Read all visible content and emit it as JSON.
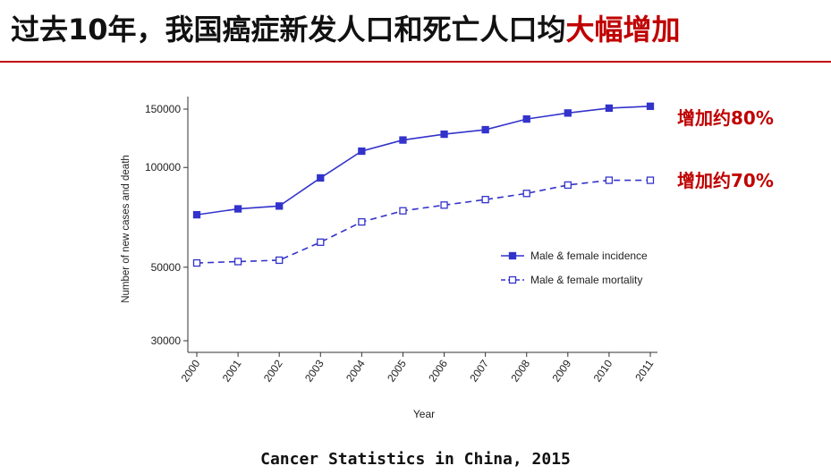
{
  "slide": {
    "title_main": "过去10年，我国癌症新发人口和死亡人口均",
    "title_highlight": "大幅增加",
    "source": "Cancer Statistics in China, 2015"
  },
  "annotations": {
    "incidence": "增加约80%",
    "mortality": "增加约70%"
  },
  "colors": {
    "series": "#3333cc",
    "highlight": "#c00000",
    "rule": "#c00000"
  },
  "chart_data": {
    "type": "line",
    "xlabel": "Year",
    "ylabel": "Number of new cases and death",
    "x": [
      "2000",
      "2001",
      "2002",
      "2003",
      "2004",
      "2005",
      "2006",
      "2007",
      "2008",
      "2009",
      "2010",
      "2011"
    ],
    "yscale": "log",
    "ylim": [
      28000,
      160000
    ],
    "yticks": [
      30000,
      50000,
      100000,
      150000
    ],
    "ytick_labels": [
      "30000",
      "50000",
      "100000",
      "150000"
    ],
    "grid": false,
    "legend_position": "right",
    "series": [
      {
        "name": "Male & female incidence",
        "style": "solid",
        "marker": "filled-square",
        "values": [
          72000,
          75000,
          76500,
          93000,
          112000,
          121000,
          126000,
          130000,
          140000,
          146000,
          151000,
          153000
        ]
      },
      {
        "name": "Male & female mortality",
        "style": "dashed",
        "marker": "open-square",
        "values": [
          51500,
          52000,
          52500,
          59500,
          68500,
          74000,
          77000,
          80000,
          83500,
          88500,
          91500,
          91500
        ]
      }
    ]
  }
}
